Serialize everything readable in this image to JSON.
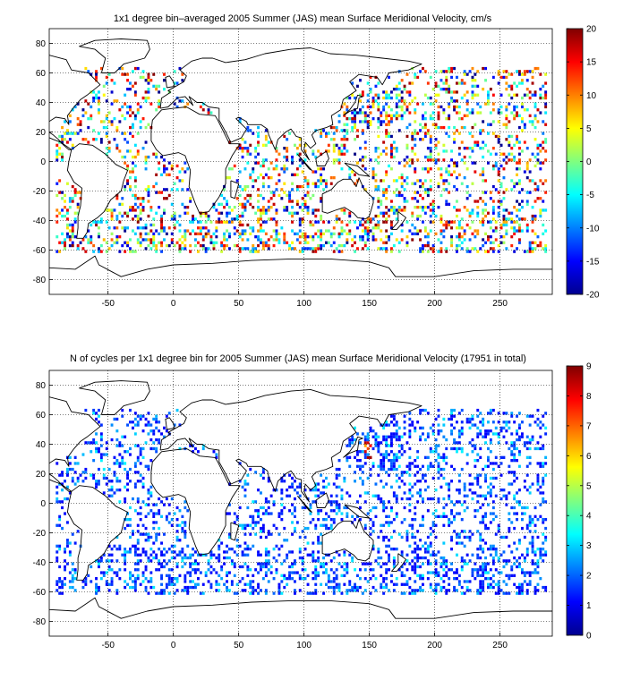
{
  "chart_data": [
    {
      "type": "heatmap",
      "title": "1x1 degree bin–averaged 2005 Summer (JAS) mean Surface Meridional Velocity, cm/s",
      "xlim": [
        -95,
        290
      ],
      "ylim": [
        -90,
        90
      ],
      "xticks": [
        -50,
        0,
        50,
        100,
        150,
        200,
        250
      ],
      "yticks": [
        -80,
        -60,
        -40,
        -20,
        0,
        20,
        40,
        60,
        80
      ],
      "colorbar": {
        "min": -20,
        "max": 20,
        "ticks": [
          -20,
          -15,
          -10,
          -5,
          0,
          5,
          10,
          15,
          20
        ]
      },
      "colormap": "jet",
      "grid": true
    },
    {
      "type": "heatmap",
      "title": "N of cycles per 1x1 degree bin for 2005 Summer (JAS) mean Surface Meridional Velocity (17951 in total)",
      "xlim": [
        -95,
        290
      ],
      "ylim": [
        -90,
        90
      ],
      "xticks": [
        -50,
        0,
        50,
        100,
        150,
        200,
        250
      ],
      "yticks": [
        -80,
        -60,
        -40,
        -20,
        0,
        20,
        40,
        60,
        80
      ],
      "colorbar": {
        "min": 0,
        "max": 9,
        "ticks": [
          0,
          1,
          2,
          3,
          4,
          5,
          6,
          7,
          8,
          9
        ]
      },
      "colormap": "jet",
      "grid": true,
      "total": 17951
    }
  ]
}
